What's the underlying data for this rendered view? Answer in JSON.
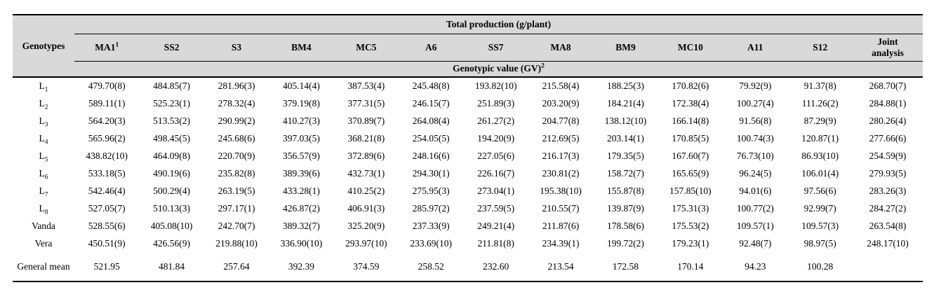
{
  "table": {
    "corner_label": "Genotypes",
    "top_header": "Total production (g/plant)",
    "sub_header": "Genotypic value (GV)",
    "sub_header_sup": "2",
    "colors": {
      "header_bg": "#d9d9d9",
      "rule": "#000000",
      "text": "#000000"
    },
    "columns": [
      {
        "label": "MA1",
        "sup": "1"
      },
      {
        "label": "SS2",
        "sup": ""
      },
      {
        "label": "S3",
        "sup": ""
      },
      {
        "label": "BM4",
        "sup": ""
      },
      {
        "label": "MC5",
        "sup": ""
      },
      {
        "label": "A6",
        "sup": ""
      },
      {
        "label": "SS7",
        "sup": ""
      },
      {
        "label": "MA8",
        "sup": ""
      },
      {
        "label": "BM9",
        "sup": ""
      },
      {
        "label": "MC10",
        "sup": ""
      },
      {
        "label": "A11",
        "sup": ""
      },
      {
        "label": "S12",
        "sup": ""
      },
      {
        "label": "Joint analysis",
        "sup": ""
      }
    ],
    "rows": [
      {
        "label": "L",
        "sub": "1",
        "values": [
          "479.70(8)",
          "484.85(7)",
          "281.96(3)",
          "405.14(4)",
          "387.53(4)",
          "245.48(8)",
          "193.82(10)",
          "215.58(4)",
          "188.25(3)",
          "170.82(6)",
          "79.92(9)",
          "91.37(8)",
          "268.70(7)"
        ]
      },
      {
        "label": "L",
        "sub": "2",
        "values": [
          "589.11(1)",
          "525.23(1)",
          "278.32(4)",
          "379.19(8)",
          "377.31(5)",
          "246.15(7)",
          "251.89(3)",
          "203.20(9)",
          "184.21(4)",
          "172.38(4)",
          "100.27(4)",
          "111.26(2)",
          "284.88(1)"
        ]
      },
      {
        "label": "L",
        "sub": "3",
        "values": [
          "564.20(3)",
          "513.53(2)",
          "290.99(2)",
          "410.27(3)",
          "370.89(7)",
          "264.08(4)",
          "261.27(2)",
          "204.77(8)",
          "138.12(10)",
          "166.14(8)",
          "91.56(8)",
          "87.29(9)",
          "280.26(4)"
        ]
      },
      {
        "label": "L",
        "sub": "4",
        "values": [
          "565.96(2)",
          "498.45(5)",
          "245.68(6)",
          "397.03(5)",
          "368.21(8)",
          "254.05(5)",
          "194.20(9)",
          "212.69(5)",
          "203.14(1)",
          "170.85(5)",
          "100.74(3)",
          "120.87(1)",
          "277.66(6)"
        ]
      },
      {
        "label": "L",
        "sub": "5",
        "values": [
          "438.82(10)",
          "464.09(8)",
          "220.70(9)",
          "356.57(9)",
          "372.89(6)",
          "248.16(6)",
          "227.05(6)",
          "216.17(3)",
          "179.35(5)",
          "167.60(7)",
          "76.73(10)",
          "86.93(10)",
          "254.59(9)"
        ]
      },
      {
        "label": "L",
        "sub": "6",
        "values": [
          "533.18(5)",
          "490.19(6)",
          "235.82(8)",
          "389.39(6)",
          "432.73(1)",
          "294.30(1)",
          "226.16(7)",
          "230.81(2)",
          "158.72(7)",
          "165.65(9)",
          "96.24(5)",
          "106.01(4)",
          "279.93(5)"
        ]
      },
      {
        "label": "L",
        "sub": "7",
        "values": [
          "542.46(4)",
          "500.29(4)",
          "263.19(5)",
          "433.28(1)",
          "410.25(2)",
          "275.95(3)",
          "273.04(1)",
          "195.38(10)",
          "155.87(8)",
          "157.85(10)",
          "94.01(6)",
          "97.56(6)",
          "283.26(3)"
        ]
      },
      {
        "label": "L",
        "sub": "8",
        "values": [
          "527.05(7)",
          "510.13(3)",
          "297.17(1)",
          "426.87(2)",
          "406.91(3)",
          "285.97(2)",
          "237.59(5)",
          "210.55(7)",
          "139.87(9)",
          "175.31(3)",
          "100.77(2)",
          "92.99(7)",
          "284.27(2)"
        ]
      },
      {
        "label": "Vanda",
        "sub": "",
        "values": [
          "528.55(6)",
          "405.08(10)",
          "242.70(7)",
          "389.32(7)",
          "325.20(9)",
          "237.33(9)",
          "249.21(4)",
          "211.87(6)",
          "178.58(6)",
          "175.53(2)",
          "109.57(1)",
          "109.57(3)",
          "263.54(8)"
        ]
      },
      {
        "label": "Vera",
        "sub": "",
        "values": [
          "450.51(9)",
          "426.56(9)",
          "219.88(10)",
          "336.90(10)",
          "293.97(10)",
          "233.69(10)",
          "211.81(8)",
          "234.39(1)",
          "199.72(2)",
          "179.23(1)",
          "92.48(7)",
          "98.97(5)",
          "248.17(10)"
        ]
      },
      {
        "label": "General mean",
        "sub": "",
        "values": [
          "521.95",
          "481.84",
          "257.64",
          "392.39",
          "374.59",
          "258.52",
          "232.60",
          "213.54",
          "172.58",
          "170.14",
          "94.23",
          "100.28",
          ""
        ]
      }
    ]
  }
}
